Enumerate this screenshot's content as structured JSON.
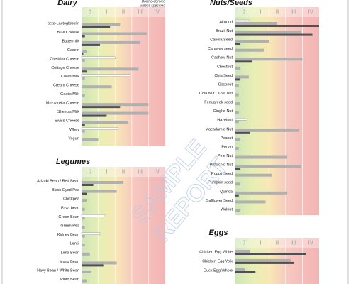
{
  "chart_data": [
    {
      "type": "hbar",
      "title": "Dairy",
      "annotation": [
        "Bovine-derived",
        "unless specified"
      ],
      "categories": [
        "beta-Lactoglobulin",
        "Blue Cheese",
        "Buttermilk",
        "Casein",
        "Cheddar Cheese",
        "Cottage Cheese",
        "Cow's Milk",
        "Cream Cheese",
        "Goat's Milk",
        "Mozzarella Cheese",
        "Sheep's Milk",
        "Swiss Cheese",
        "Whey",
        "Yogurt"
      ],
      "series": [
        {
          "color": "#ffffff",
          "values": [
            0,
            0,
            0,
            0,
            2.0,
            0,
            2.9,
            0,
            0,
            0,
            0,
            0,
            2.2,
            0
          ]
        },
        {
          "color": "#b0b0b0",
          "values": [
            2.3,
            3.9,
            3.5,
            0.3,
            0.2,
            3.4,
            0.2,
            1.8,
            0.2,
            4.0,
            4.0,
            2.8,
            0.2,
            1.0
          ]
        },
        {
          "color": "#505050",
          "values": [
            1.7,
            0.2,
            1.1,
            0.1,
            0,
            0.3,
            0,
            0,
            0,
            2.3,
            1.5,
            0.2,
            0,
            0
          ]
        }
      ],
      "xlim": [
        0,
        5
      ],
      "xticks": [
        {
          "value": 0.5,
          "label": "0"
        },
        {
          "value": 1.5,
          "label": "I"
        },
        {
          "value": 2.5,
          "label": "II"
        },
        {
          "value": 3.5,
          "label": "III"
        },
        {
          "value": 4.5,
          "label": "IV"
        }
      ]
    },
    {
      "type": "hbar",
      "title": "Legumes",
      "categories": [
        "Adzuki Bean / Red Bean",
        "Black-Eyed Pea",
        "Chickpea",
        "Fava bean",
        "Green Bean",
        "Green Pea",
        "Kidney Bean",
        "Lentil",
        "Lima Bean",
        "Mung Bean",
        "Navy Bean / White Bean",
        "Pinto Bean"
      ],
      "series": [
        {
          "color": "#ffffff",
          "values": [
            0,
            0,
            0,
            0,
            1.4,
            0,
            1.1,
            0,
            0,
            0,
            0,
            0
          ]
        },
        {
          "color": "#b0b0b0",
          "values": [
            2.5,
            2.1,
            0.3,
            0.2,
            0.2,
            0.2,
            0.2,
            0.2,
            0.5,
            2.1,
            0.6,
            0.3
          ]
        },
        {
          "color": "#505050",
          "values": [
            0.7,
            0.3,
            0,
            0,
            0,
            0,
            0,
            0,
            0,
            1.3,
            0,
            0
          ]
        }
      ],
      "xlim": [
        0,
        5
      ],
      "xticks": [
        {
          "value": 0.5,
          "label": "0"
        },
        {
          "value": 1.5,
          "label": "I"
        },
        {
          "value": 2.5,
          "label": "II"
        },
        {
          "value": 3.5,
          "label": "III"
        },
        {
          "value": 4.5,
          "label": "IV"
        }
      ]
    },
    {
      "type": "hbar",
      "title": "Nuts/Seeds",
      "categories": [
        "Almond",
        "Brazil Nut",
        "Canola Seed",
        "Caraway seed",
        "Cashew Nut",
        "Chestnut",
        "Chia Seed",
        "Coconut",
        "Cola Nut / Kola Nut",
        "Fenugreek seed",
        "Gingko Nut",
        "Hazelnut",
        "Macadamia Nut",
        "Peanut",
        "Pecan",
        "Pine Nut",
        "Pistachio Nut",
        "Poppy Seed",
        "Pumpkin seed",
        "Quinoa",
        "Safflower Seed",
        "Walnut"
      ],
      "series": [
        {
          "color": "#ffffff",
          "values": [
            0.85,
            0,
            0,
            0,
            0,
            0,
            0,
            0,
            0,
            0,
            0,
            0.7,
            0,
            0,
            0,
            0,
            0,
            0,
            0,
            0,
            0,
            0
          ]
        },
        {
          "color": "#b0b0b0",
          "values": [
            2.5,
            3.9,
            2.0,
            1.7,
            4.0,
            0.3,
            0.8,
            0.2,
            0.2,
            0.3,
            0.2,
            0.2,
            3.8,
            0.3,
            0.2,
            3.1,
            3.9,
            2.2,
            0.3,
            3.1,
            1.8,
            0.3
          ]
        },
        {
          "color": "#505050",
          "values": [
            5.0,
            4.6,
            0.3,
            0,
            1.0,
            0,
            0.3,
            0,
            0,
            0,
            0,
            0,
            0.85,
            0,
            0,
            0,
            0.3,
            0,
            0,
            0.2,
            0,
            0
          ]
        }
      ],
      "xlim": [
        0,
        5
      ],
      "xticks": [
        {
          "value": 0.5,
          "label": "0"
        },
        {
          "value": 1.5,
          "label": "I"
        },
        {
          "value": 2.5,
          "label": "II"
        },
        {
          "value": 3.5,
          "label": "III"
        },
        {
          "value": 4.5,
          "label": "IV"
        }
      ]
    },
    {
      "type": "hbar",
      "title": "Eggs",
      "categories": [
        "Chicken Egg White",
        "Chicken Egg Yolk",
        "Duck Egg Whole"
      ],
      "series": [
        {
          "color": "#b0b0b0",
          "values": [
            0.85,
            3.3,
            0.55
          ]
        },
        {
          "color": "#505050",
          "values": [
            4.2,
            3.5,
            1.2
          ]
        }
      ],
      "xlim": [
        0,
        5
      ],
      "xticks": [
        {
          "value": 0.5,
          "label": "0"
        },
        {
          "value": 1.5,
          "label": "I"
        },
        {
          "value": 2.5,
          "label": "II"
        },
        {
          "value": 3.5,
          "label": "III"
        },
        {
          "value": 4.5,
          "label": "IV"
        }
      ]
    }
  ],
  "watermark": [
    "SAMPLE",
    "REPORT"
  ]
}
